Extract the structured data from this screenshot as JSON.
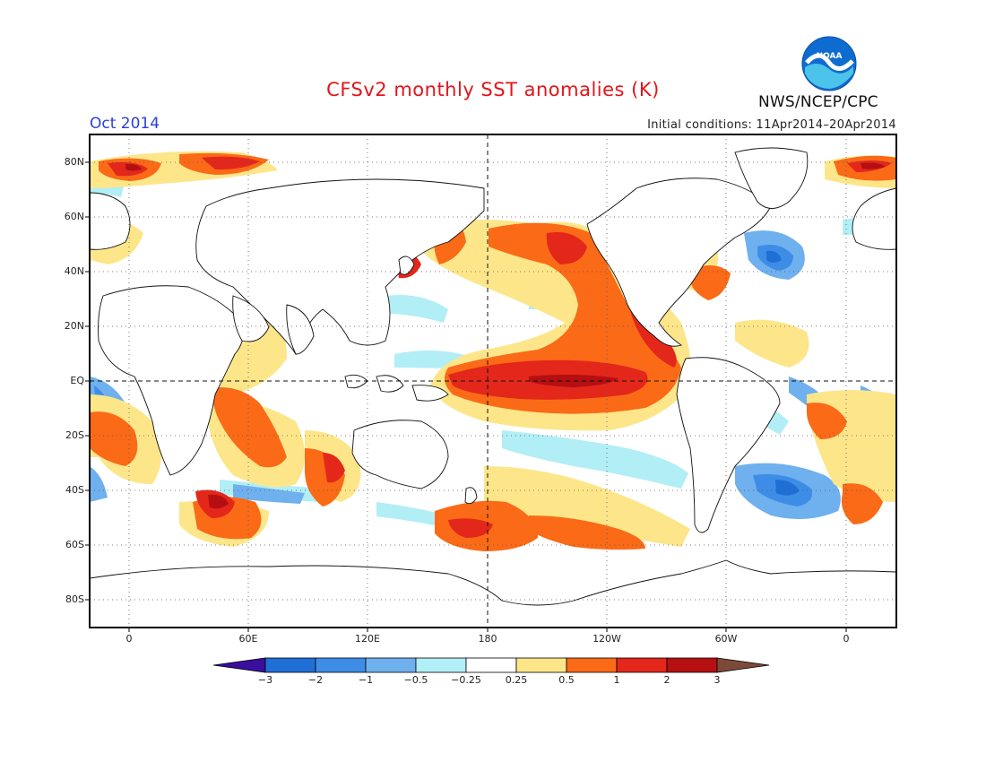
{
  "title": "CFSv2 monthly SST anomalies (K)",
  "month_label": "Oct 2014",
  "initial_conditions": "Initial conditions: 11Apr2014–20Apr2014",
  "agency": "NWS/NCEP/CPC",
  "logo_text": "NOAA",
  "logo_icon": "noaa-logo-icon",
  "axes": {
    "lat_labels": [
      "80N",
      "60N",
      "40N",
      "20N",
      "EQ",
      "20S",
      "40S",
      "60S",
      "80S"
    ],
    "lon_labels": [
      "0",
      "60E",
      "120E",
      "180",
      "120W",
      "60W",
      "0"
    ]
  },
  "colorbar": {
    "labels": [
      "−3",
      "−2",
      "−1",
      "−0.5",
      "−0.25",
      "0.25",
      "0.5",
      "1",
      "2",
      "3"
    ],
    "colors": [
      "#3a0f9e",
      "#1f6fd6",
      "#3d8de6",
      "#6fb0ee",
      "#b2eef6",
      "#ffffff",
      "#fde68a",
      "#fb6a17",
      "#e3271b",
      "#b50f12",
      "#7d4a3a"
    ]
  },
  "palette": {
    "ocean_neutral": "#ffffff",
    "title_color": "#e3141a",
    "month_color": "#2a3fd8"
  }
}
